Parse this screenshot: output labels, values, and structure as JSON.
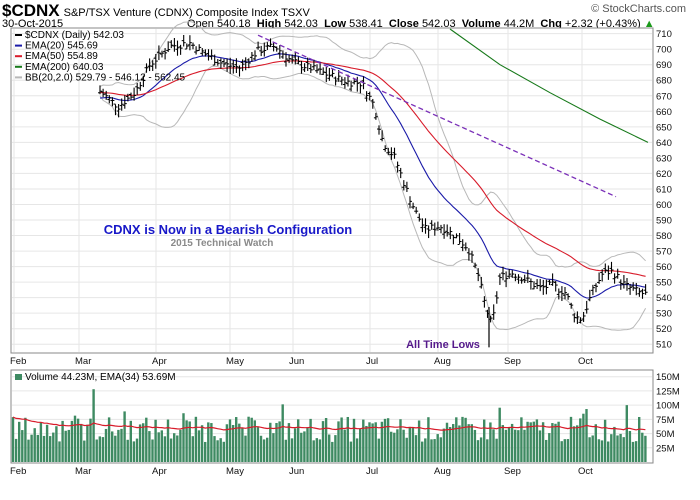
{
  "header": {
    "symbol": "$CDNX",
    "name": "S&P/TSX Venture (CDNX) Composite Index TSXV",
    "date": "30-Oct-2015",
    "open_label": "Open",
    "open": "540.18",
    "high_label": "High",
    "high": "542.03",
    "low_label": "Low",
    "low": "538.41",
    "close_label": "Close",
    "close": "542.03",
    "volume_label": "Volume",
    "volume": "44.2M",
    "chg_label": "Chg",
    "chg": "+2.32 (+0.43%)",
    "chg_arrow": "▲",
    "credit": "© StockCharts.com"
  },
  "colors": {
    "price_bars": "#000000",
    "ema20": "#1a1aa8",
    "ema50": "#d81b2a",
    "ema200": "#17791a",
    "bbands": "#b8b8b8",
    "volume_bars": "#3e8a62",
    "volume_ema": "#d81b2a",
    "trendline": "#7a2fb8",
    "annotation_blue": "#1818c8",
    "annotation_purple": "#551a8b"
  },
  "chart_data": [
    {
      "type": "ohlc",
      "title": "$CDNX (Daily) 542.03",
      "legend": [
        {
          "label": "$CDNX (Daily) 542.03",
          "color": "#000000"
        },
        {
          "label": "EMA(20) 545.69",
          "color": "#1a1aa8"
        },
        {
          "label": "EMA(50) 554.89",
          "color": "#d81b2a"
        },
        {
          "label": "EMA(200) 640.03",
          "color": "#17791a"
        },
        {
          "label": "BB(20,2.0) 529.79 - 546.12 - 562.45",
          "color": "#b8b8b8"
        }
      ],
      "legend_position": "top-left",
      "x_ticks": [
        "Feb",
        "Mar",
        "Apr",
        "May",
        "Jun",
        "Jul",
        "Aug",
        "Sep",
        "Oct"
      ],
      "y_ticks": [
        510,
        520,
        530,
        540,
        550,
        560,
        570,
        580,
        590,
        600,
        610,
        620,
        630,
        640,
        650,
        660,
        670,
        680,
        690,
        700,
        710
      ],
      "ylim": [
        505,
        713
      ],
      "price_series": [
        {
          "month": "Mar",
          "close": 673
        },
        {
          "month": "Mar",
          "close": 663
        },
        {
          "month": "Mar",
          "close": 672
        },
        {
          "month": "Apr",
          "close": 690
        },
        {
          "month": "Apr",
          "close": 703
        },
        {
          "month": "Apr",
          "close": 705
        },
        {
          "month": "May",
          "close": 688
        },
        {
          "month": "May",
          "close": 696
        },
        {
          "month": "May",
          "close": 700
        },
        {
          "month": "Jun",
          "close": 690
        },
        {
          "month": "Jun",
          "close": 683
        },
        {
          "month": "Jun",
          "close": 679
        },
        {
          "month": "Jul",
          "close": 660
        },
        {
          "month": "Jul",
          "close": 620
        },
        {
          "month": "Jul",
          "close": 585
        },
        {
          "month": "Aug",
          "close": 580
        },
        {
          "month": "Aug",
          "close": 565
        },
        {
          "month": "Aug",
          "close": 540
        },
        {
          "month": "Sep",
          "close": 558
        },
        {
          "month": "Sep",
          "close": 545
        },
        {
          "month": "Sep",
          "close": 548
        },
        {
          "month": "Oct",
          "close": 527
        },
        {
          "month": "Oct",
          "close": 556
        },
        {
          "month": "Oct",
          "close": 542
        }
      ],
      "annotations": [
        {
          "text": "CDNX is Now in a Bearish Configuration",
          "color": "#1818c8"
        },
        {
          "text": "2015 Technical Watch",
          "color": "#888888"
        },
        {
          "text": "All Time Lows",
          "color": "#551a8b"
        }
      ]
    },
    {
      "type": "bar",
      "title": "Volume 44.23M, EMA(34) 53.69M",
      "y_ticks": [
        "25M",
        "50M",
        "75M",
        "100M",
        "125M",
        "150M"
      ],
      "ylim": [
        0,
        160
      ],
      "x_ticks": [
        "Feb",
        "Mar",
        "Apr",
        "May",
        "Jun",
        "Jul",
        "Aug",
        "Sep",
        "Oct"
      ],
      "volume_ema_level": 55
    }
  ]
}
